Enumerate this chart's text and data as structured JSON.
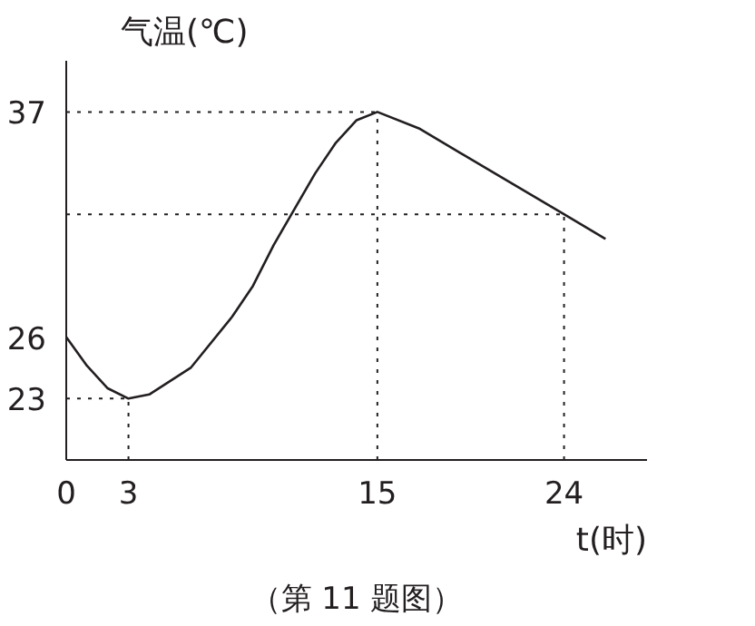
{
  "chart_data": {
    "type": "line",
    "xlabel": "t(时)",
    "ylabel": "气温(℃)",
    "series": [
      {
        "color": "#231f20",
        "x": [
          0,
          1,
          2,
          3,
          4,
          6,
          8,
          9,
          10,
          12,
          13,
          14,
          15,
          17,
          19,
          21,
          24,
          26
        ],
        "values": [
          26,
          24.6,
          23.5,
          23,
          23.2,
          24.5,
          27,
          28.5,
          30.5,
          34,
          35.5,
          36.6,
          37,
          36.2,
          35,
          33.8,
          32,
          30.8
        ]
      }
    ],
    "xlim": [
      0,
      28
    ],
    "ylim": [
      20,
      39.5
    ],
    "xticks": [
      0,
      3,
      15,
      24
    ],
    "yticks": [
      23,
      26,
      37
    ],
    "ref_lines": [
      {
        "axis": "x",
        "value": 3,
        "line_style": "dotted"
      },
      {
        "axis": "y",
        "value": 23,
        "line_style": "dotted"
      },
      {
        "axis": "x",
        "value": 15,
        "line_style": "dotted"
      },
      {
        "axis": "y",
        "value": 37,
        "line_style": "dotted"
      },
      {
        "axis": "x",
        "value": 24,
        "line_style": "dotted"
      },
      {
        "axis": "y",
        "value": 32,
        "line_style": "dotted"
      }
    ],
    "annotations": [
      "（第 11 题图）"
    ],
    "grid": false,
    "marker": "none",
    "line_style": "solid"
  }
}
